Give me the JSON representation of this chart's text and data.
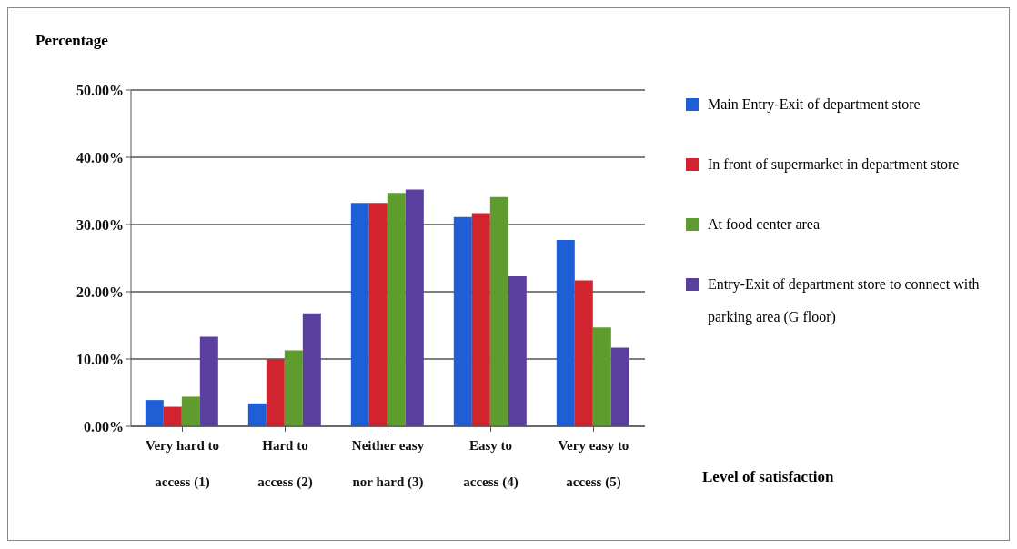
{
  "chart_data": {
    "type": "bar",
    "ylabel": "Percentage",
    "xlabel": "Level of satisfaction",
    "categories": [
      "Very hard to access (1)",
      "Hard to access (2)",
      "Neither easy nor hard (3)",
      "Easy to access (4)",
      "Very easy to access (5)"
    ],
    "series": [
      {
        "name": "Main Entry-Exit of department store",
        "color": "#1f5fd6",
        "values": [
          3.9,
          3.4,
          33.2,
          31.1,
          27.7
        ]
      },
      {
        "name": "In front of supermarket in department store",
        "color": "#d1242f",
        "values": [
          2.9,
          10.0,
          33.2,
          31.7,
          21.7
        ]
      },
      {
        "name": "At food center area",
        "color": "#5f9c2e",
        "values": [
          4.4,
          11.3,
          34.7,
          34.1,
          14.7
        ]
      },
      {
        "name": "Entry-Exit of department store to connect with parking area (G floor)",
        "color": "#5a3fa0",
        "values": [
          13.3,
          16.8,
          35.2,
          22.3,
          11.7
        ]
      }
    ],
    "ylim": [
      0,
      50
    ],
    "yticks": [
      {
        "value": 0,
        "label": "0.00%"
      },
      {
        "value": 10,
        "label": "10.00%"
      },
      {
        "value": 20,
        "label": "20.00%"
      },
      {
        "value": 30,
        "label": "30.00%"
      },
      {
        "value": 40,
        "label": "40.00%"
      },
      {
        "value": 50,
        "label": "50.00%"
      }
    ],
    "grid": "y",
    "legend": "right"
  }
}
